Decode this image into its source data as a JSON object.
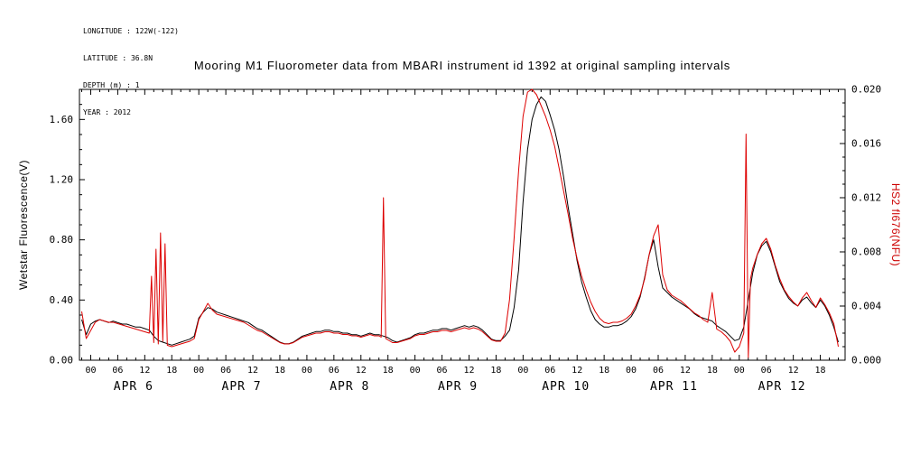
{
  "meta": {
    "longitude": "LONGITUDE : 122W(-122)",
    "latitude": "LATITUDE : 36.8N",
    "depth": "DEPTH (m) : 1",
    "year": "YEAR : 2012"
  },
  "title": "Mooring M1 Fluorometer data from MBARI instrument id 1392 at original sampling intervals",
  "chart_data": {
    "type": "line",
    "title": "Mooring M1 Fluorometer data from MBARI instrument id 1392 at original sampling intervals",
    "x_unit": "hours since 2012-04-06 00:00",
    "grid": false,
    "legend": "none",
    "x_axis": {
      "range": [
        -2.5,
        167.5
      ],
      "major_tick_step_hours": 6,
      "minor_tick_step_hours": 2,
      "first_major_hour": 0,
      "last_major_hour": 162,
      "hour_tick_labels": [
        "00",
        "06",
        "12",
        "18"
      ],
      "day_labels": [
        {
          "label": "APR 6",
          "center_hour": 9.5
        },
        {
          "label": "APR 7",
          "center_hour": 33.5
        },
        {
          "label": "APR 8",
          "center_hour": 57.5
        },
        {
          "label": "APR 9",
          "center_hour": 81.5
        },
        {
          "label": "APR 10",
          "center_hour": 105.5
        },
        {
          "label": "APR 11",
          "center_hour": 129.5
        },
        {
          "label": "APR 12",
          "center_hour": 153.5
        }
      ]
    },
    "left_axis": {
      "label": "Wetstar Fluorescence(V)",
      "range": [
        0,
        1.8
      ],
      "tick_values": [
        0.0,
        0.4,
        0.8,
        1.2,
        1.6
      ],
      "tick_labels": [
        "0.00",
        "0.40",
        "0.80",
        "1.20",
        "1.60"
      ],
      "minor_step": 0.1,
      "color": "#000000"
    },
    "right_axis": {
      "label": "HS2 fl676(NFU)",
      "range": [
        0,
        0.02
      ],
      "tick_values": [
        0,
        0.004,
        0.008,
        0.012,
        0.016,
        0.02
      ],
      "tick_labels": [
        "0.000",
        "0.004",
        "0.008",
        "0.012",
        "0.016",
        "0.020"
      ],
      "minor_step": 0.001,
      "color": "#cc0000"
    },
    "series": [
      {
        "name": "Wetstar Fluorescence(V)",
        "axis": "left",
        "color": "#000000",
        "x_start": -2,
        "x_step": 1,
        "values": [
          0.27,
          0.17,
          0.24,
          0.26,
          0.27,
          0.26,
          0.25,
          0.26,
          0.25,
          0.24,
          0.24,
          0.23,
          0.22,
          0.22,
          0.21,
          0.2,
          0.16,
          0.13,
          0.12,
          0.11,
          0.1,
          0.11,
          0.12,
          0.13,
          0.14,
          0.16,
          0.28,
          0.32,
          0.35,
          0.34,
          0.32,
          0.31,
          0.3,
          0.29,
          0.28,
          0.27,
          0.26,
          0.25,
          0.23,
          0.21,
          0.2,
          0.18,
          0.16,
          0.14,
          0.12,
          0.11,
          0.11,
          0.12,
          0.14,
          0.16,
          0.17,
          0.18,
          0.19,
          0.19,
          0.2,
          0.2,
          0.19,
          0.19,
          0.18,
          0.18,
          0.17,
          0.17,
          0.16,
          0.17,
          0.18,
          0.17,
          0.17,
          0.16,
          0.15,
          0.13,
          0.12,
          0.13,
          0.14,
          0.15,
          0.17,
          0.18,
          0.18,
          0.19,
          0.2,
          0.2,
          0.21,
          0.21,
          0.2,
          0.21,
          0.22,
          0.23,
          0.22,
          0.23,
          0.22,
          0.2,
          0.17,
          0.14,
          0.13,
          0.13,
          0.16,
          0.2,
          0.35,
          0.6,
          1.05,
          1.4,
          1.6,
          1.7,
          1.75,
          1.72,
          1.63,
          1.53,
          1.4,
          1.22,
          1.02,
          0.84,
          0.66,
          0.52,
          0.42,
          0.33,
          0.27,
          0.24,
          0.22,
          0.22,
          0.23,
          0.23,
          0.24,
          0.26,
          0.29,
          0.34,
          0.42,
          0.55,
          0.7,
          0.8,
          0.62,
          0.48,
          0.45,
          0.42,
          0.4,
          0.38,
          0.36,
          0.34,
          0.31,
          0.29,
          0.28,
          0.27,
          0.26,
          0.23,
          0.21,
          0.19,
          0.16,
          0.13,
          0.14,
          0.22,
          0.4,
          0.58,
          0.7,
          0.76,
          0.79,
          0.72,
          0.62,
          0.52,
          0.46,
          0.41,
          0.38,
          0.36,
          0.4,
          0.42,
          0.38,
          0.35,
          0.4,
          0.36,
          0.3,
          0.22,
          0.12
        ]
      },
      {
        "name": "HS2 fl676(NFU)",
        "axis": "right",
        "color": "#dd0000",
        "x": [
          -2,
          -1,
          0,
          1,
          2,
          3,
          4,
          5,
          6,
          7,
          8,
          9,
          10,
          11,
          12,
          13,
          13.5,
          14,
          14.5,
          15,
          15.5,
          16,
          16.5,
          17,
          18,
          19,
          20,
          21,
          22,
          23,
          24,
          25,
          26,
          27,
          28,
          29,
          30,
          31,
          32,
          33,
          34,
          35,
          36,
          37,
          38,
          39,
          40,
          41,
          42,
          43,
          44,
          45,
          46,
          47,
          48,
          49,
          50,
          51,
          52,
          53,
          54,
          55,
          56,
          57,
          58,
          59,
          60,
          61,
          62,
          63,
          64,
          64.5,
          65,
          65.5,
          66,
          67,
          68,
          69,
          70,
          71,
          72,
          73,
          74,
          75,
          76,
          77,
          78,
          79,
          80,
          81,
          82,
          83,
          84,
          85,
          86,
          87,
          88,
          89,
          90,
          91,
          92,
          93,
          94,
          95,
          96,
          97,
          98,
          99,
          100,
          101,
          102,
          103,
          104,
          105,
          106,
          107,
          108,
          109,
          110,
          111,
          112,
          113,
          114,
          115,
          116,
          117,
          118,
          119,
          120,
          121,
          122,
          123,
          124,
          125,
          126,
          127,
          128,
          129,
          130,
          131,
          132,
          133,
          134,
          135,
          136,
          137,
          138,
          139,
          140,
          141,
          142,
          143,
          144,
          145,
          145.5,
          146,
          146.5,
          147,
          148,
          149,
          150,
          151,
          152,
          153,
          154,
          155,
          156,
          157,
          158,
          159,
          160,
          161,
          162,
          163,
          164,
          165,
          166
        ],
        "values": [
          0.0036,
          0.0016,
          0.0022,
          0.0028,
          0.003,
          0.0029,
          0.0028,
          0.0028,
          0.0027,
          0.0026,
          0.0025,
          0.0024,
          0.0023,
          0.0022,
          0.0021,
          0.002,
          0.0062,
          0.0013,
          0.0082,
          0.0012,
          0.0094,
          0.0014,
          0.0086,
          0.0011,
          0.001,
          0.0011,
          0.0012,
          0.0013,
          0.0014,
          0.0016,
          0.003,
          0.0036,
          0.0042,
          0.0037,
          0.0034,
          0.0033,
          0.0032,
          0.0031,
          0.003,
          0.0029,
          0.0028,
          0.0026,
          0.0024,
          0.0022,
          0.0021,
          0.0019,
          0.0017,
          0.0015,
          0.0013,
          0.0012,
          0.0012,
          0.0013,
          0.0015,
          0.0017,
          0.0018,
          0.0019,
          0.002,
          0.002,
          0.0021,
          0.0021,
          0.002,
          0.002,
          0.0019,
          0.0019,
          0.0018,
          0.0018,
          0.0017,
          0.0018,
          0.0019,
          0.0018,
          0.0018,
          0.0017,
          0.012,
          0.0016,
          0.0015,
          0.0013,
          0.0013,
          0.0014,
          0.0015,
          0.0016,
          0.0018,
          0.0019,
          0.0019,
          0.002,
          0.0021,
          0.0021,
          0.0022,
          0.0022,
          0.0021,
          0.0022,
          0.0023,
          0.0024,
          0.0023,
          0.0024,
          0.0023,
          0.0021,
          0.0018,
          0.0015,
          0.0014,
          0.0014,
          0.002,
          0.0045,
          0.009,
          0.014,
          0.018,
          0.0198,
          0.02,
          0.0196,
          0.0188,
          0.018,
          0.017,
          0.0158,
          0.0142,
          0.0125,
          0.0108,
          0.009,
          0.0075,
          0.0062,
          0.0052,
          0.0043,
          0.0036,
          0.0031,
          0.0028,
          0.0027,
          0.0028,
          0.0028,
          0.0029,
          0.0031,
          0.0034,
          0.004,
          0.0048,
          0.006,
          0.0078,
          0.0092,
          0.01,
          0.0063,
          0.0052,
          0.0048,
          0.0046,
          0.0044,
          0.0041,
          0.0038,
          0.0035,
          0.0033,
          0.003,
          0.0028,
          0.005,
          0.0023,
          0.0021,
          0.0018,
          0.0014,
          0.0006,
          0.001,
          0.002,
          0.0167,
          0.0002,
          0.006,
          0.0068,
          0.0078,
          0.0086,
          0.009,
          0.0082,
          0.007,
          0.006,
          0.0052,
          0.0047,
          0.0043,
          0.004,
          0.0046,
          0.005,
          0.0044,
          0.0039,
          0.0046,
          0.0041,
          0.0035,
          0.0027,
          0.001
        ]
      }
    ]
  }
}
